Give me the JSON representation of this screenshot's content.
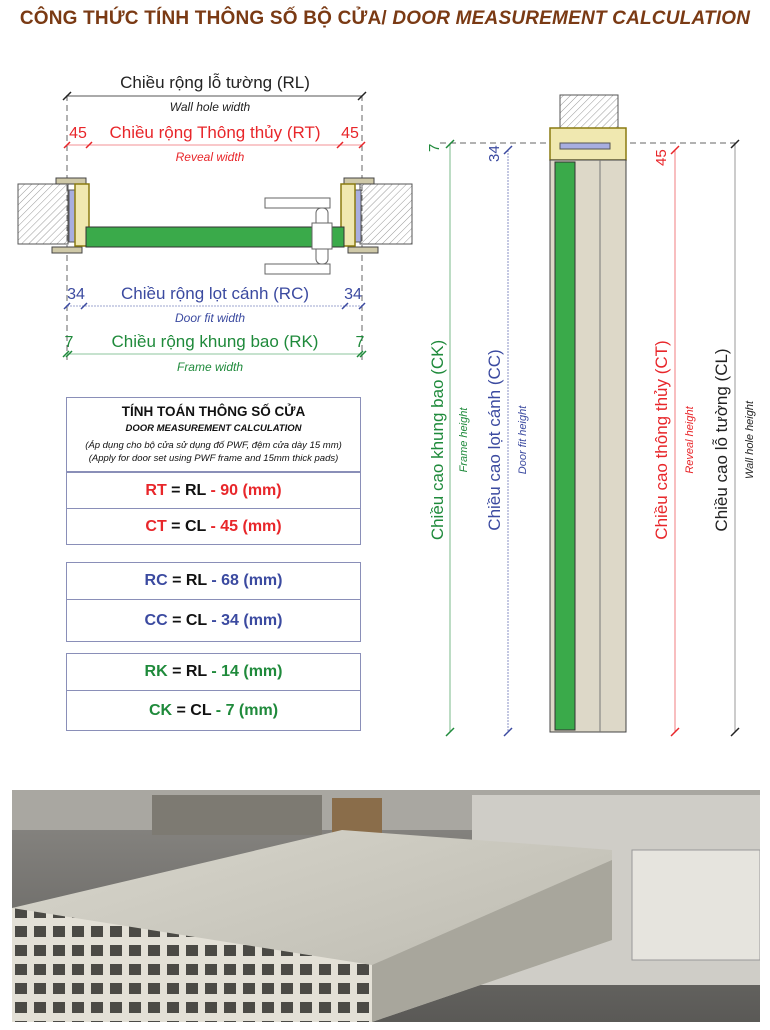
{
  "title": {
    "vi": "CÔNG THỨC TÍNH THÔNG SỐ BỘ CỬA/ ",
    "en": "DOOR MEASUREMENT CALCULATION"
  },
  "plan": {
    "rl": {
      "label": "Chiều rộng lỗ tường (RL)",
      "sub": "Wall hole width"
    },
    "rt": {
      "label": "Chiều rộng Thông thủy (RT)",
      "sub": "Reveal width",
      "left": "45",
      "right": "45"
    },
    "rc": {
      "label": "Chiều rộng lọt cánh (RC)",
      "sub": "Door fit width",
      "left": "34",
      "right": "34"
    },
    "rk": {
      "label": "Chiều rộng khung bao (RK)",
      "sub": "Frame width",
      "left": "7",
      "right": "7"
    }
  },
  "section": {
    "ck": {
      "label": "Chiều cao khung bao (CK)",
      "sub": "Frame height",
      "offset": "7"
    },
    "cc": {
      "label": "Chiều cao lọt cánh (CC)",
      "sub": "Door fit height",
      "offset": "34"
    },
    "ct": {
      "label": "Chiều cao thông thủy (CT)",
      "sub": "Reveal height",
      "offset": "45"
    },
    "cl": {
      "label": "Chiều cao lỗ tường (CL)",
      "sub": "Wall hole height"
    }
  },
  "table": {
    "title": "TÍNH TOÁN THÔNG SỐ CỬA",
    "subtitle": "DOOR MEASUREMENT CALCULATION",
    "note_vi": "(Áp dụng cho bộ cửa sử dụng đố PWF, đệm cửa dày 15 mm)",
    "note_en": "(Apply for door set using PWF frame and 15mm thick pads)",
    "rows": [
      {
        "a": "RT",
        "b": "RL",
        "c": "- 90 (mm)"
      },
      {
        "a": "CT",
        "b": "CL",
        "c": "- 45 (mm)"
      },
      {
        "a": "RC",
        "b": "RL",
        "c": "- 68 (mm)"
      },
      {
        "a": "CC",
        "b": "CL",
        "c": "- 34 (mm)"
      },
      {
        "a": "RK",
        "b": "RL",
        "c": "- 14 (mm)"
      },
      {
        "a": "CK",
        "b": "CL",
        "c": "- 7 (mm)"
      }
    ],
    "eq": " = "
  },
  "colors": {
    "title": "#7a3a14",
    "red": "#e8262a",
    "blue": "#3b4aa0",
    "green": "#1f8a3b",
    "door": "#3aaa4a"
  }
}
